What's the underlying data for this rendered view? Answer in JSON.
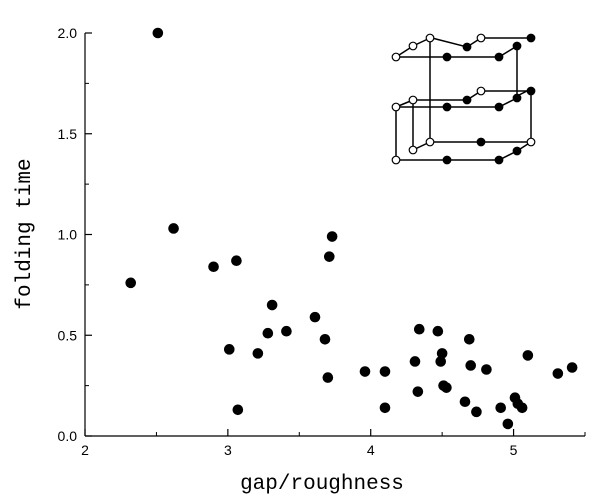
{
  "chart_data": {
    "type": "scatter",
    "title": "",
    "xlabel": "gap/roughness",
    "ylabel": "folding time",
    "xlim": [
      2,
      5.5
    ],
    "ylim": [
      0,
      2.0
    ],
    "grid": false,
    "x_ticks": [
      2,
      3,
      4,
      5
    ],
    "x_tick_labels": [
      "2",
      "3",
      "4",
      "5"
    ],
    "y_ticks": [
      0,
      0.5,
      1.0,
      1.5,
      2.0
    ],
    "y_tick_labels": [
      "0.0",
      "0.5",
      "1.0",
      "1.5",
      "2.0"
    ],
    "series": [
      {
        "points": [
          {
            "x": 2.51,
            "y": 2.0
          },
          {
            "x": 2.62,
            "y": 1.03
          },
          {
            "x": 2.32,
            "y": 0.76
          },
          {
            "x": 2.9,
            "y": 0.84
          },
          {
            "x": 3.06,
            "y": 0.87
          },
          {
            "x": 3.01,
            "y": 0.43
          },
          {
            "x": 3.07,
            "y": 0.13
          },
          {
            "x": 3.21,
            "y": 0.41
          },
          {
            "x": 3.28,
            "y": 0.51
          },
          {
            "x": 3.31,
            "y": 0.65
          },
          {
            "x": 3.41,
            "y": 0.52
          },
          {
            "x": 3.61,
            "y": 0.59
          },
          {
            "x": 3.68,
            "y": 0.48
          },
          {
            "x": 3.7,
            "y": 0.29
          },
          {
            "x": 3.71,
            "y": 0.89
          },
          {
            "x": 3.73,
            "y": 0.99
          },
          {
            "x": 3.96,
            "y": 0.32
          },
          {
            "x": 4.1,
            "y": 0.32
          },
          {
            "x": 4.1,
            "y": 0.14
          },
          {
            "x": 4.31,
            "y": 0.37
          },
          {
            "x": 4.33,
            "y": 0.22
          },
          {
            "x": 4.34,
            "y": 0.53
          },
          {
            "x": 4.47,
            "y": 0.52
          },
          {
            "x": 4.49,
            "y": 0.37
          },
          {
            "x": 4.5,
            "y": 0.41
          },
          {
            "x": 4.51,
            "y": 0.25
          },
          {
            "x": 4.53,
            "y": 0.24
          },
          {
            "x": 4.66,
            "y": 0.17
          },
          {
            "x": 4.69,
            "y": 0.48
          },
          {
            "x": 4.7,
            "y": 0.35
          },
          {
            "x": 4.74,
            "y": 0.12
          },
          {
            "x": 4.81,
            "y": 0.33
          },
          {
            "x": 4.91,
            "y": 0.14
          },
          {
            "x": 4.96,
            "y": 0.06
          },
          {
            "x": 5.01,
            "y": 0.19
          },
          {
            "x": 5.03,
            "y": 0.16
          },
          {
            "x": 5.06,
            "y": 0.14
          },
          {
            "x": 5.1,
            "y": 0.4
          },
          {
            "x": 5.31,
            "y": 0.31
          },
          {
            "x": 5.41,
            "y": 0.34
          }
        ]
      }
    ]
  },
  "colors": {
    "marker": "#000000",
    "axis": "#000000",
    "background": "#ffffff",
    "inset_open_node": "#ffffff",
    "inset_filled_node": "#000000"
  }
}
